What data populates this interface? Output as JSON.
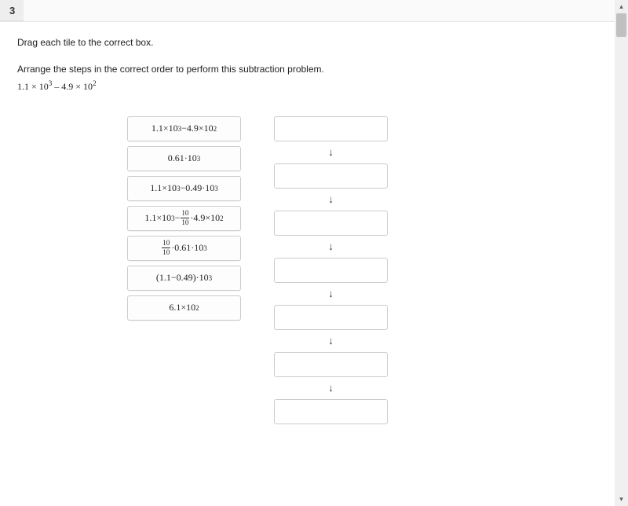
{
  "question_number": "3",
  "instruction": "Drag each tile to the correct box.",
  "problem": "Arrange the steps in the correct order to perform this subtraction problem.",
  "expression_parts": {
    "a": "1.1 × 10",
    "exp_a": "3",
    "mid": " – 4.9 × 10",
    "exp_b": "2"
  },
  "tiles": [
    {
      "id": "tile-1",
      "html": "1.1×10<sup>3</sup>−4.9×10<sup>2</sup>"
    },
    {
      "id": "tile-2",
      "html": "0.61·10<sup>3</sup>"
    },
    {
      "id": "tile-3",
      "html": "1.1×10<sup>3</sup>−0.49·10<sup>3</sup>"
    },
    {
      "id": "tile-4",
      "html": "1.1×10<sup>3</sup>−<span class=\"fraction\"><span class=\"num\">10</span><span class=\"den\">10</span></span>·4.9×10<sup>2</sup>"
    },
    {
      "id": "tile-5",
      "html": "<span class=\"fraction\"><span class=\"num\">10</span><span class=\"den\">10</span></span>·0.61·10<sup>3</sup>"
    },
    {
      "id": "tile-6",
      "html": "(1.1−0.49)·10<sup>3</sup>"
    },
    {
      "id": "tile-7",
      "html": "6.1×10<sup>2</sup>"
    }
  ],
  "drop_slot_count": 7,
  "arrow_glyph": "↓",
  "colors": {
    "tile_border": "#cccccc",
    "tile_bg": "#fdfdfd",
    "text": "#222222",
    "header_bg": "#eeeeee"
  }
}
